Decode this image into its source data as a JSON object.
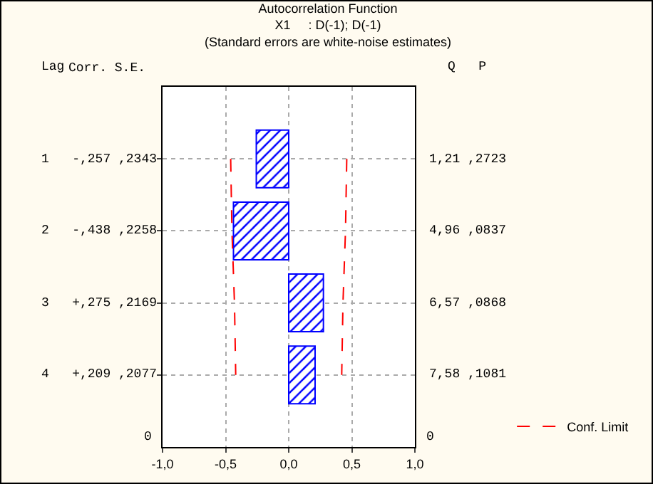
{
  "chart_data": {
    "type": "bar",
    "orientation": "horizontal",
    "title": "Autocorrelation Function",
    "subtitle": "X1     : D(-1); D(-1)\n(Standard errors are white-noise estimates)",
    "categories": [
      null,
      null,
      null,
      null
    ],
    "values": [
      -0.257,
      -0.438,
      0.275,
      0.209
    ],
    "color": "#0000ff",
    "series": [
      {
        "name": "Conf. Limit",
        "type": "line",
        "color": "#ff0000",
        "line_style": "dashed",
        "values": [
          0.46,
          0.45,
          0.43,
          0.42
        ]
      },
      {
        "type": "line",
        "color": "#ff0000",
        "line_style": "dashed",
        "values": [
          -0.46,
          -0.45,
          -0.43,
          -0.42
        ]
      }
    ],
    "xlim": [
      -1,
      1
    ],
    "xticks": [
      {
        "value": -1,
        "label": "-1,0"
      },
      {
        "value": -0.5,
        "label": "-0,5"
      },
      {
        "value": 0,
        "label": "0,0"
      },
      {
        "value": 0.5,
        "label": "0,5"
      },
      {
        "value": 1,
        "label": "1,0"
      }
    ],
    "tick_labels": "x",
    "annotations": [
      "Lag",
      "Corr. S.E.",
      "Q   P",
      "0",
      "0",
      "1   -,257 ,2343",
      "2   -,438 ,2258",
      "3   +,275 ,2169",
      "4   +,209 ,2077",
      "1,21 ,2723",
      "4,96 ,0837",
      "6,57 ,0868",
      "7,58 ,1081"
    ],
    "grid": true,
    "legend": "bottom right"
  }
}
